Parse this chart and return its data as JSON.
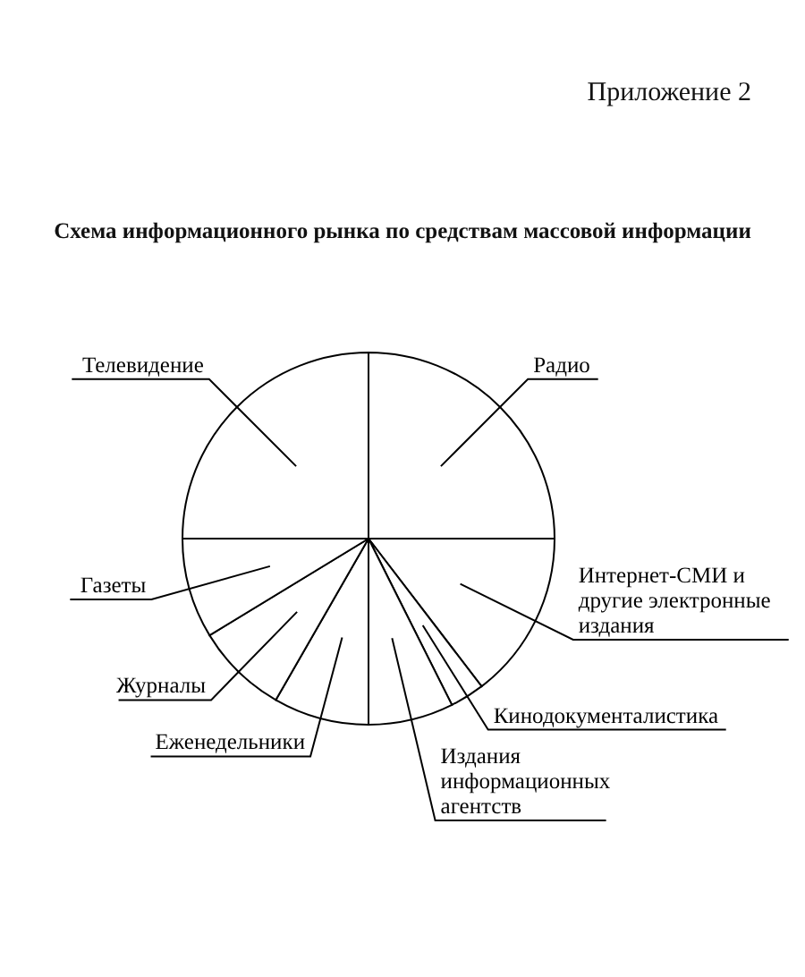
{
  "chart_data": {
    "type": "pie",
    "title": "Схема информационного рынка по средствам массовой информации",
    "annotations": [
      "Приложение 2"
    ],
    "categories": [
      "Радио",
      "Интернет-СМИ и другие электронные издания",
      "Кинодокументалистика",
      "Издания информационных агентств",
      "Еженедельники",
      "Журналы",
      "Газеты",
      "Телевидение"
    ],
    "values": [
      25,
      14.6,
      3,
      7.4,
      8.3,
      8,
      8.7,
      25
    ],
    "colors": [
      "#ffffff",
      "#ffffff",
      "#ffffff",
      "#ffffff",
      "#ffffff",
      "#ffffff",
      "#ffffff",
      "#ffffff"
    ]
  }
}
